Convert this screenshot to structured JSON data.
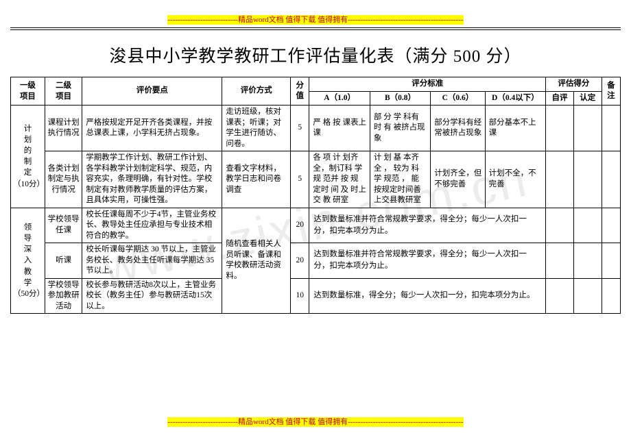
{
  "banners": {
    "top": "----------------------------精品word文档 值得下载 值得拥有----------------------------------------------",
    "bottom": "----------------------------精品word文档 值得下载 值得拥有----------------------------------------------"
  },
  "watermark": "www.zixin.com.cn",
  "title": "浚县中小学教学教研工作评估量化表（满分 500 分）",
  "header": {
    "level1": "一级\n项目",
    "level2": "二级\n项目",
    "points": "评价要点",
    "method": "评价方式",
    "score": "分\n值",
    "criteria": "评分标准",
    "a": "A（1.0）",
    "b": "B（0.8）",
    "c": "C（0.6）",
    "d": "D（0.4以下）",
    "result": "评估得分",
    "self": "自评",
    "confirm": "认定",
    "note": "备\n注"
  },
  "sections": [
    {
      "l1": "计\n划\n的\n制\n定\n（10分）",
      "rows": [
        {
          "l2": "课程计划执行情况",
          "points": "严格按规定开足开齐各类课程，并按总课表上课，小学科无挤占现象。",
          "method": "走访班级，核对课表；听课；对学生进行随访、问卷。",
          "score": "5",
          "a": "严 格 按 课表上课",
          "b": "部 分 学 科有 时 有 被挤占现象",
          "c": "部分学科有经常被挤占现象",
          "d": "部分基本不上课"
        },
        {
          "l2": "各类计划制定与执行情况",
          "points": "学期教学工作计划、教研工作计划、各学科教学计划制定科学、规范，内容充实，条理明确，有针对性。学校制定有对教师教学质量的评估方案，且具体实用，可操性强。",
          "method": "查看文字材料，教学日志和问卷调查",
          "score": "5",
          "a": "各 项 计 划齐全，制订科 学 规 范并 按 规 定时 间 及 时上 交 教 研室",
          "b": "计 划 基 本齐 全 ， 较为 科 学 规范 ， 能 按规定时间善上交县教研室",
          "c": "计划齐全，但不够完善",
          "d": "计划不全，不完善"
        }
      ]
    },
    {
      "l1": "领\n导\n深\n入\n教\n学\n（50分）",
      "rows": [
        {
          "l2": "学校领导任课",
          "points": "校长任课每周不少于4节，主管业务校长、教导处主任应承担与专业技术相符合的教学。",
          "method_merged": "随机查看相关人员听课、备课和学校教研活动资料。",
          "score": "20",
          "criteria_merged": "达到数量标准并符合常规教学要求，得全分；每少一人次扣一分，扣完本项分为止。"
        },
        {
          "l2": "听课",
          "points": "校长听课每学期达 30 节以上，主管业务校长、教务处主任听课每学期达 35 节以上。",
          "score": "20",
          "criteria_merged": "达到数量标准并符合常规教学要求，得全分；每少一人次扣一分，扣完本项分为止。"
        },
        {
          "l2": "学校领导参加教研活动",
          "points": "校长参与教研活动8次以上，主管业务校长（教务主任）参与教研活动15次以上。",
          "score": "10",
          "criteria_merged": "达到数量标准，得全分；每少一人次扣一分，扣完本项分为止。"
        }
      ]
    }
  ]
}
